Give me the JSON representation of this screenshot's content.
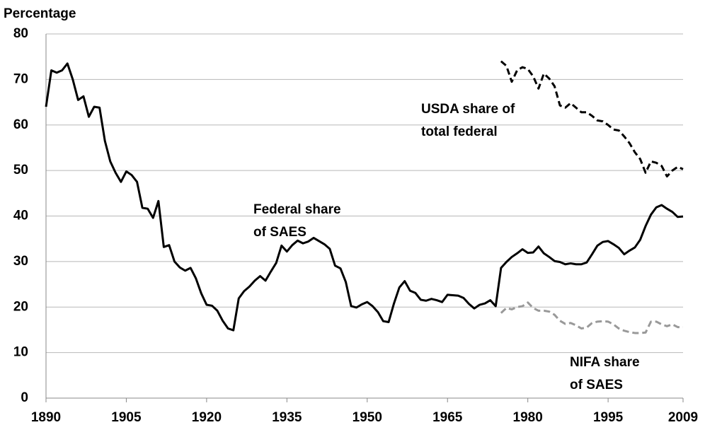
{
  "chart_data": {
    "type": "line",
    "ylabel": "Percentage",
    "x": [
      1890,
      1891,
      1892,
      1893,
      1894,
      1895,
      1896,
      1897,
      1898,
      1899,
      1900,
      1901,
      1902,
      1903,
      1904,
      1905,
      1906,
      1907,
      1908,
      1909,
      1910,
      1911,
      1912,
      1913,
      1914,
      1915,
      1916,
      1917,
      1918,
      1919,
      1920,
      1921,
      1922,
      1923,
      1924,
      1925,
      1926,
      1927,
      1928,
      1929,
      1930,
      1931,
      1932,
      1933,
      1934,
      1935,
      1936,
      1937,
      1938,
      1939,
      1940,
      1941,
      1942,
      1943,
      1944,
      1945,
      1946,
      1947,
      1948,
      1949,
      1950,
      1951,
      1952,
      1953,
      1954,
      1955,
      1956,
      1957,
      1958,
      1959,
      1960,
      1961,
      1962,
      1963,
      1964,
      1965,
      1966,
      1967,
      1968,
      1969,
      1970,
      1971,
      1972,
      1973,
      1974,
      1975,
      1976,
      1977,
      1978,
      1979,
      1980,
      1981,
      1982,
      1983,
      1984,
      1985,
      1986,
      1987,
      1988,
      1989,
      1990,
      1991,
      1992,
      1993,
      1994,
      1995,
      1996,
      1997,
      1998,
      1999,
      2000,
      2001,
      2002,
      2003,
      2004,
      2005,
      2006,
      2007,
      2008,
      2009
    ],
    "series": [
      {
        "color": "#000000",
        "dash": "solid",
        "values": [
          64,
          72,
          71.5,
          72,
          73.5,
          70,
          65.5,
          66.3,
          61.8,
          64,
          63.8,
          56.5,
          52,
          49.5,
          47.5,
          49.8,
          49,
          47.5,
          41.8,
          41.6,
          39.6,
          43.3,
          33.2,
          33.6,
          30,
          28.7,
          28,
          28.6,
          26.3,
          23,
          20.5,
          20.3,
          19.2,
          17,
          15.3,
          14.9,
          21.9,
          23.5,
          24.5,
          25.8,
          26.8,
          25.8,
          27.8,
          29.7,
          33.5,
          32.2,
          33.6,
          34.6,
          34,
          34.4,
          35.2,
          34.5,
          33.8,
          32.8,
          29.1,
          28.5,
          25.5,
          20.2,
          19.9,
          20.6,
          21.1,
          20.2,
          18.9,
          16.9,
          16.7,
          20.8,
          24.3,
          25.7,
          23.6,
          23.1,
          21.6,
          21.4,
          21.8,
          21.5,
          21.1,
          22.7,
          22.6,
          22.5,
          22,
          20.7,
          19.7,
          20.5,
          20.8,
          21.5,
          20.2,
          28.6,
          29.9,
          31,
          31.8,
          32.7,
          31.9,
          32,
          33.3,
          31.8,
          31,
          30.1,
          29.9,
          29.4,
          29.6,
          29.4,
          29.4,
          29.8,
          31.6,
          33.5,
          34.3,
          34.5,
          33.8,
          33,
          31.6,
          32.4,
          33.1,
          34.8,
          37.8,
          40.3,
          41.9,
          42.4,
          41.6,
          40.9,
          39.8,
          39.9
        ]
      },
      {
        "color": "#000000",
        "dash": "dashed",
        "values": [
          null,
          null,
          null,
          null,
          null,
          null,
          null,
          null,
          null,
          null,
          null,
          null,
          null,
          null,
          null,
          null,
          null,
          null,
          null,
          null,
          null,
          null,
          null,
          null,
          null,
          null,
          null,
          null,
          null,
          null,
          null,
          null,
          null,
          null,
          null,
          null,
          null,
          null,
          null,
          null,
          null,
          null,
          null,
          null,
          null,
          null,
          null,
          null,
          null,
          null,
          null,
          null,
          null,
          null,
          null,
          null,
          null,
          null,
          null,
          null,
          null,
          null,
          null,
          null,
          null,
          null,
          null,
          null,
          null,
          null,
          null,
          null,
          null,
          null,
          null,
          null,
          null,
          null,
          null,
          null,
          null,
          null,
          null,
          null,
          null,
          74,
          73,
          69.5,
          72,
          72.7,
          72.3,
          70.7,
          68,
          71.3,
          70.2,
          68.5,
          64.3,
          63.8,
          64.8,
          63.8,
          62.8,
          62.8,
          62,
          61,
          60.8,
          60,
          59,
          58.8,
          57.5,
          56,
          54,
          52.5,
          49.5,
          52,
          51.7,
          51,
          48.7,
          50,
          50.8,
          50.3
        ]
      },
      {
        "color": "#999999",
        "dash": "dashed",
        "values": [
          null,
          null,
          null,
          null,
          null,
          null,
          null,
          null,
          null,
          null,
          null,
          null,
          null,
          null,
          null,
          null,
          null,
          null,
          null,
          null,
          null,
          null,
          null,
          null,
          null,
          null,
          null,
          null,
          null,
          null,
          null,
          null,
          null,
          null,
          null,
          null,
          null,
          null,
          null,
          null,
          null,
          null,
          null,
          null,
          null,
          null,
          null,
          null,
          null,
          null,
          null,
          null,
          null,
          null,
          null,
          null,
          null,
          null,
          null,
          null,
          null,
          null,
          null,
          null,
          null,
          null,
          null,
          null,
          null,
          null,
          null,
          null,
          null,
          null,
          null,
          null,
          null,
          null,
          null,
          null,
          null,
          null,
          null,
          null,
          null,
          18.7,
          19.8,
          19.5,
          20,
          20.2,
          21,
          19.8,
          19.2,
          19.2,
          19,
          18.3,
          17,
          16.3,
          16.5,
          16,
          15.3,
          15.5,
          16.5,
          16.8,
          16.9,
          16.8,
          16.2,
          15.3,
          14.8,
          14.5,
          14.3,
          14.3,
          14.4,
          16.8,
          16.8,
          16.2,
          15.8,
          16.2,
          15.6,
          15.6
        ]
      }
    ],
    "annotations": [
      [
        "USDA share of",
        "total federal"
      ],
      [
        "Federal share",
        "of SAES"
      ],
      [
        "NIFA share",
        "of SAES"
      ]
    ],
    "xlim": [
      1890,
      2009
    ],
    "xticks": [
      1890,
      1905,
      1920,
      1935,
      1950,
      1965,
      1980,
      1995,
      2009
    ],
    "ylim": [
      0,
      80
    ],
    "yticks": [
      0,
      10,
      20,
      30,
      40,
      50,
      60,
      70,
      80
    ],
    "grid": true
  }
}
